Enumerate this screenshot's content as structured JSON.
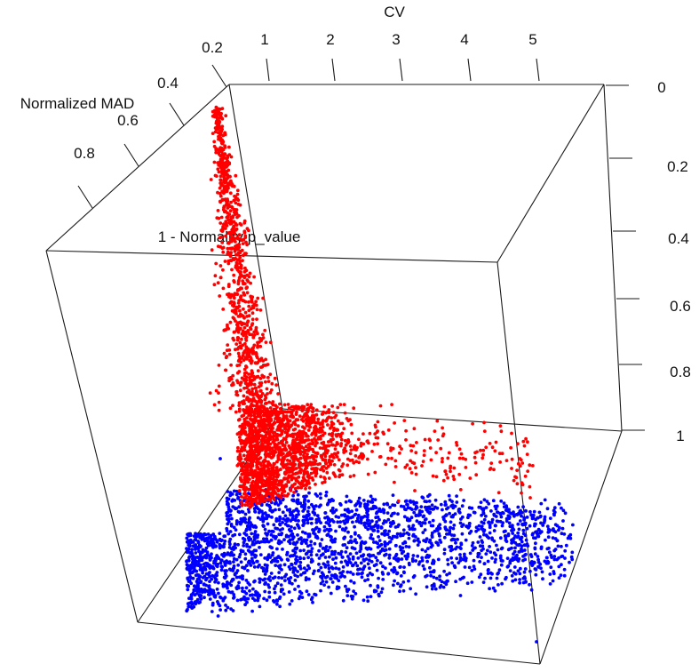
{
  "chart_data": {
    "type": "scatter",
    "projection": "3d-perspective",
    "axes": {
      "x": {
        "label": "CV",
        "ticks": [
          "1",
          "2",
          "3",
          "4",
          "5"
        ]
      },
      "y": {
        "label": "1 - Normality p_value",
        "ticks": [
          "0",
          "0.2",
          "0.4",
          "0.6",
          "0.8",
          "1"
        ]
      },
      "z": {
        "label": "Normalized MAD",
        "ticks": [
          "0.2",
          "0.4",
          "0.6",
          "0.8"
        ]
      }
    },
    "series": [
      {
        "color": "#ff0000",
        "approx_count": 2400,
        "description_range": {
          "x": [
            0.0,
            3.9
          ],
          "y": [
            0.0,
            1.0
          ]
        }
      },
      {
        "color": "#0000ff",
        "approx_count": 2800,
        "description_range": {
          "x": [
            0.0,
            5.0
          ],
          "y": [
            0.9,
            1.0
          ]
        }
      }
    ]
  }
}
